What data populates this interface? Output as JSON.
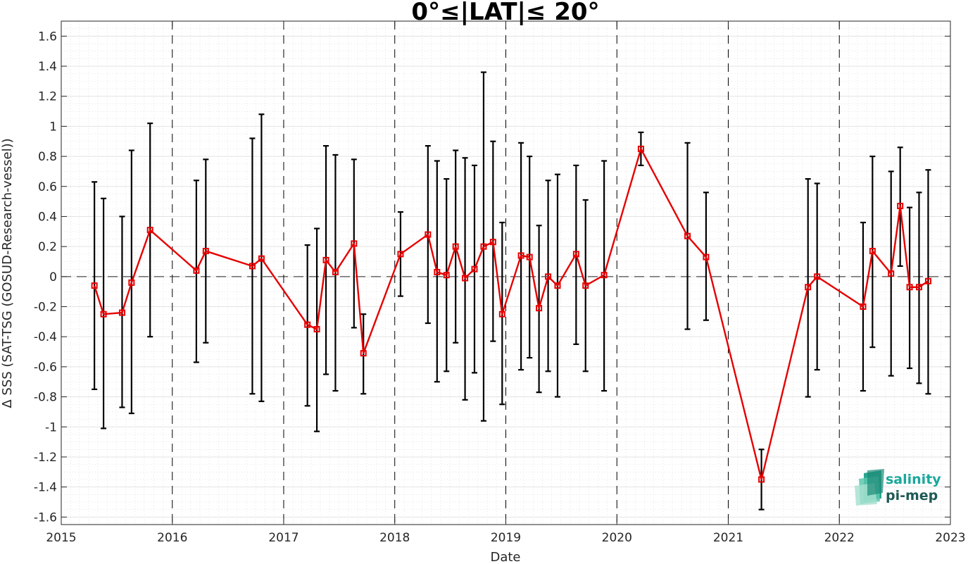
{
  "chart_data": {
    "type": "line",
    "title": "0°≤|LAT|≤ 20°",
    "xlabel": "Date",
    "ylabel": "Δ SSS (SAT-TSG (GOSUD-Research-vessel))",
    "xlim": [
      "2015-01-01",
      "2023-01-01"
    ],
    "ylim": [
      -1.65,
      1.7
    ],
    "xticks": [
      "2015",
      "2016",
      "2017",
      "2018",
      "2019",
      "2020",
      "2021",
      "2022",
      "2023"
    ],
    "yticks": [
      -1.6,
      -1.4,
      -1.2,
      -1,
      -0.8,
      -0.6,
      -0.4,
      -0.2,
      0,
      0.2,
      0.4,
      0.6,
      0.8,
      1,
      1.2,
      1.4,
      1.6
    ],
    "grid": true,
    "minor_grid": true,
    "zero_line": true,
    "year_lines": true,
    "line_color": "#e60000",
    "errorbar_color": "#000000",
    "marker": "square",
    "points": [
      {
        "date": "2015-04-20",
        "y": -0.06,
        "ylo": -0.75,
        "yhi": 0.63
      },
      {
        "date": "2015-05-20",
        "y": -0.25,
        "ylo": -1.01,
        "yhi": 0.52
      },
      {
        "date": "2015-07-20",
        "y": -0.24,
        "ylo": -0.87,
        "yhi": 0.4
      },
      {
        "date": "2015-08-20",
        "y": -0.04,
        "ylo": -0.91,
        "yhi": 0.84
      },
      {
        "date": "2015-10-20",
        "y": 0.31,
        "ylo": -0.4,
        "yhi": 1.02
      },
      {
        "date": "2016-03-20",
        "y": 0.04,
        "ylo": -0.57,
        "yhi": 0.64
      },
      {
        "date": "2016-04-20",
        "y": 0.17,
        "ylo": -0.44,
        "yhi": 0.78
      },
      {
        "date": "2016-09-20",
        "y": 0.07,
        "ylo": -0.78,
        "yhi": 0.92
      },
      {
        "date": "2016-10-20",
        "y": 0.12,
        "ylo": -0.83,
        "yhi": 1.08
      },
      {
        "date": "2017-03-20",
        "y": -0.32,
        "ylo": -0.86,
        "yhi": 0.21
      },
      {
        "date": "2017-04-20",
        "y": -0.35,
        "ylo": -1.03,
        "yhi": 0.32
      },
      {
        "date": "2017-05-20",
        "y": 0.11,
        "ylo": -0.65,
        "yhi": 0.87
      },
      {
        "date": "2017-06-20",
        "y": 0.03,
        "ylo": -0.76,
        "yhi": 0.81
      },
      {
        "date": "2017-08-20",
        "y": 0.22,
        "ylo": -0.34,
        "yhi": 0.78
      },
      {
        "date": "2017-09-20",
        "y": -0.51,
        "ylo": -0.78,
        "yhi": -0.25
      },
      {
        "date": "2018-01-20",
        "y": 0.15,
        "ylo": -0.13,
        "yhi": 0.43
      },
      {
        "date": "2018-04-20",
        "y": 0.28,
        "ylo": -0.31,
        "yhi": 0.87
      },
      {
        "date": "2018-05-20",
        "y": 0.03,
        "ylo": -0.7,
        "yhi": 0.77
      },
      {
        "date": "2018-06-20",
        "y": 0.01,
        "ylo": -0.63,
        "yhi": 0.65
      },
      {
        "date": "2018-07-20",
        "y": 0.2,
        "ylo": -0.44,
        "yhi": 0.84
      },
      {
        "date": "2018-08-20",
        "y": -0.01,
        "ylo": -0.82,
        "yhi": 0.79
      },
      {
        "date": "2018-09-20",
        "y": 0.05,
        "ylo": -0.64,
        "yhi": 0.74
      },
      {
        "date": "2018-10-20",
        "y": 0.2,
        "ylo": -0.96,
        "yhi": 1.36
      },
      {
        "date": "2018-11-20",
        "y": 0.23,
        "ylo": -0.43,
        "yhi": 0.9
      },
      {
        "date": "2018-12-20",
        "y": -0.25,
        "ylo": -0.85,
        "yhi": 0.36
      },
      {
        "date": "2019-02-20",
        "y": 0.14,
        "ylo": -0.62,
        "yhi": 0.89
      },
      {
        "date": "2019-03-20",
        "y": 0.13,
        "ylo": -0.54,
        "yhi": 0.8
      },
      {
        "date": "2019-04-20",
        "y": -0.21,
        "ylo": -0.77,
        "yhi": 0.34
      },
      {
        "date": "2019-05-20",
        "y": 0.0,
        "ylo": -0.63,
        "yhi": 0.64
      },
      {
        "date": "2019-06-20",
        "y": -0.06,
        "ylo": -0.8,
        "yhi": 0.68
      },
      {
        "date": "2019-08-20",
        "y": 0.15,
        "ylo": -0.45,
        "yhi": 0.74
      },
      {
        "date": "2019-09-20",
        "y": -0.06,
        "ylo": -0.63,
        "yhi": 0.51
      },
      {
        "date": "2019-11-20",
        "y": 0.01,
        "ylo": -0.76,
        "yhi": 0.77
      },
      {
        "date": "2020-03-20",
        "y": 0.85,
        "ylo": 0.74,
        "yhi": 0.96
      },
      {
        "date": "2020-08-20",
        "y": 0.27,
        "ylo": -0.35,
        "yhi": 0.89
      },
      {
        "date": "2020-10-20",
        "y": 0.13,
        "ylo": -0.29,
        "yhi": 0.56
      },
      {
        "date": "2021-04-20",
        "y": -1.35,
        "ylo": -1.55,
        "yhi": -1.15
      },
      {
        "date": "2021-09-20",
        "y": -0.07,
        "ylo": -0.8,
        "yhi": 0.65
      },
      {
        "date": "2021-10-20",
        "y": 0.0,
        "ylo": -0.62,
        "yhi": 0.62
      },
      {
        "date": "2022-03-20",
        "y": -0.2,
        "ylo": -0.76,
        "yhi": 0.36
      },
      {
        "date": "2022-04-20",
        "y": 0.17,
        "ylo": -0.47,
        "yhi": 0.8
      },
      {
        "date": "2022-06-20",
        "y": 0.02,
        "ylo": -0.66,
        "yhi": 0.7
      },
      {
        "date": "2022-07-20",
        "y": 0.47,
        "ylo": 0.07,
        "yhi": 0.86
      },
      {
        "date": "2022-08-20",
        "y": -0.07,
        "ylo": -0.61,
        "yhi": 0.46
      },
      {
        "date": "2022-09-20",
        "y": -0.07,
        "ylo": -0.71,
        "yhi": 0.56
      },
      {
        "date": "2022-10-20",
        "y": -0.03,
        "ylo": -0.78,
        "yhi": 0.71
      }
    ]
  },
  "logo": {
    "line1": "salinity",
    "line2": "pi-mep",
    "color1": "#1aa89a",
    "color2": "#1e5a56"
  }
}
